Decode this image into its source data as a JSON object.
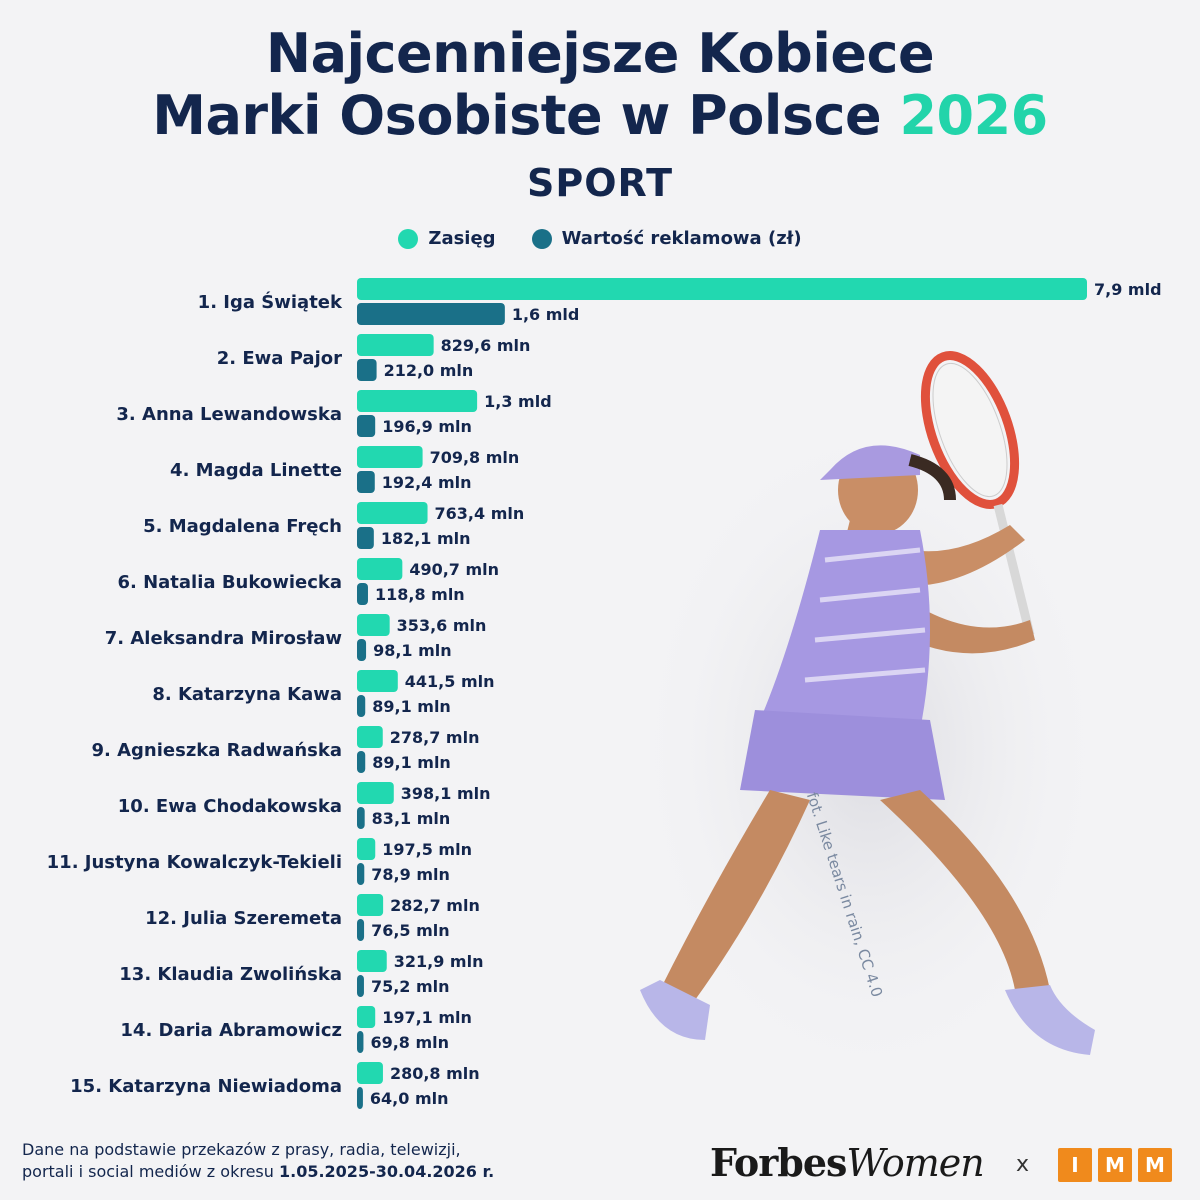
{
  "header": {
    "title_line1": "Najcenniejsze Kobiece",
    "title_line2": "Marki Osobiste w Polsce",
    "year": "2026",
    "subtitle": "SPORT"
  },
  "legend": {
    "reach_label": "Zasięg",
    "value_label": "Wartość reklamowa (zł)"
  },
  "colors": {
    "reach": "#22d8b0",
    "value": "#1a7088",
    "title": "#13264d",
    "accent": "#22d4aa"
  },
  "photo_credit": "fot. Like tears in rain, CC 4.0",
  "footnote": {
    "line1": "Dane na podstawie przekazów z prasy, radia, telewizji,",
    "line2_prefix": "portali i social mediów z okresu ",
    "line2_period": "1.05.2025-30.04.2026 r."
  },
  "brand": {
    "forbes": "Forbes",
    "women": "Women",
    "separator": "x",
    "imm_letters": [
      "I",
      "M",
      "M"
    ]
  },
  "chart_data": {
    "type": "bar",
    "orientation": "horizontal",
    "categories": [
      "1. Iga Świątek",
      "2. Ewa Pajor",
      "3. Anna Lewandowska",
      "4. Magda Linette",
      "5. Magdalena Fręch",
      "6. Natalia Bukowiecka",
      "7. Aleksandra Mirosław",
      "8. Katarzyna Kawa",
      "9. Agnieszka Radwańska",
      "10. Ewa Chodakowska",
      "11. Justyna Kowalczyk-Tekieli",
      "12. Julia Szeremeta",
      "13. Klaudia Zwolińska",
      "14. Daria Abramowicz",
      "15. Katarzyna Niewiadoma"
    ],
    "series": [
      {
        "name": "Zasięg",
        "values": [
          7900000000,
          829600000,
          1300000000,
          709800000,
          763400000,
          490700000,
          353600000,
          441500000,
          278700000,
          398100000,
          197500000,
          282700000,
          321900000,
          197100000,
          280800000
        ],
        "labels": [
          "7,9 mld",
          "829,6 mln",
          "1,3 mld",
          "709,8 mln",
          "763,4 mln",
          "490,7 mln",
          "353,6 mln",
          "441,5 mln",
          "278,7 mln",
          "398,1 mln",
          "197,5 mln",
          "282,7 mln",
          "321,9 mln",
          "197,1 mln",
          "280,8 mln"
        ]
      },
      {
        "name": "Wartość reklamowa (zł)",
        "values": [
          1600000000,
          212000000,
          196900000,
          192400000,
          182100000,
          118800000,
          98100000,
          89100000,
          89100000,
          83100000,
          78900000,
          76500000,
          75200000,
          69800000,
          64000000
        ],
        "labels": [
          "1,6 mld",
          "212,0 mln",
          "196,9 mln",
          "192,4 mln",
          "182,1 mln",
          "118,8 mln",
          "98,1 mln",
          "89,1 mln",
          "89,1 mln",
          "83,1 mln",
          "78,9 mln",
          "76,5 mln",
          "75,2 mln",
          "69,8 mln",
          "64,0 mln"
        ]
      }
    ],
    "xlim": [
      0,
      7900000000
    ],
    "grid": false,
    "legend_position": "top-center"
  }
}
